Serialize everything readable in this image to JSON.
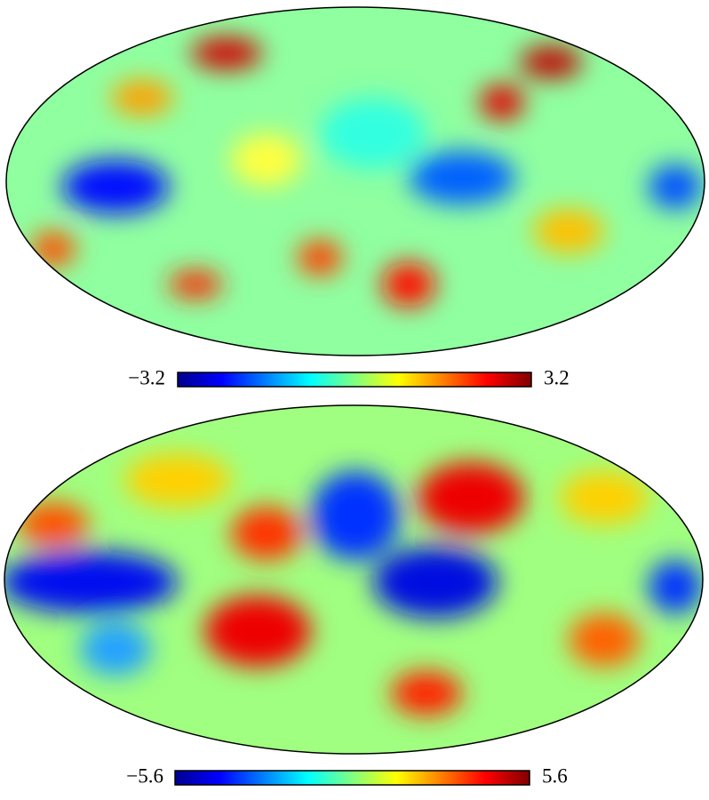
{
  "maps": [
    {
      "colorbar": {
        "min_label": "−3.2",
        "max_label": "3.2"
      }
    },
    {
      "colorbar": {
        "min_label": "−5.6",
        "max_label": "5.6"
      }
    }
  ]
}
